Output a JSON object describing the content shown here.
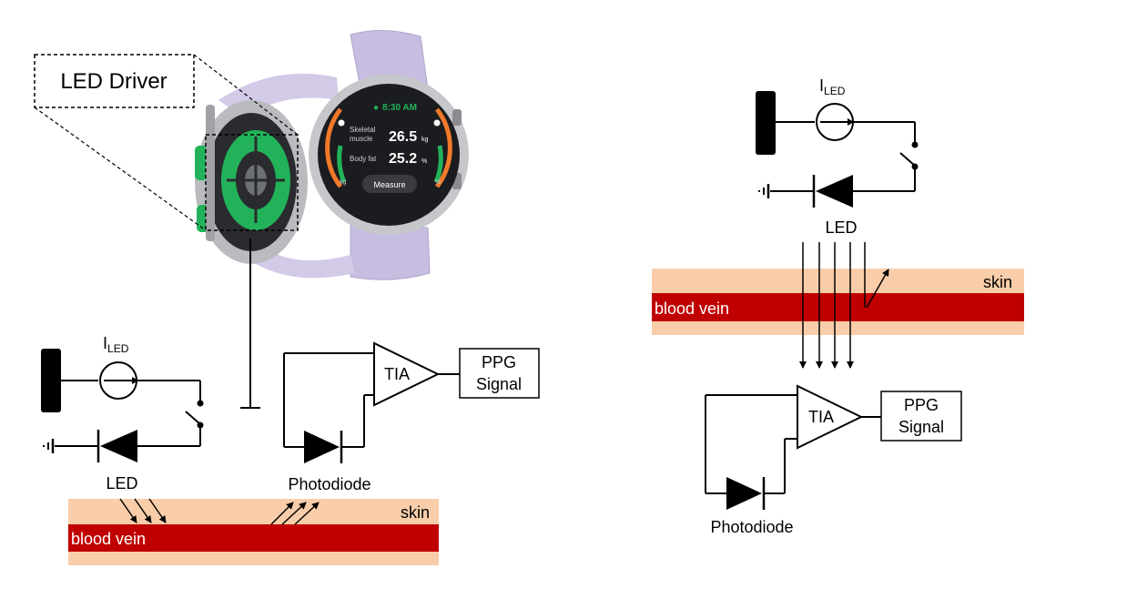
{
  "left_panel": {
    "callout_label": "LED Driver",
    "watch": {
      "time": "8:30 AM",
      "metric1_label_line1": "Skeletal",
      "metric1_label_line2": "muscle",
      "metric1_value": "26.5",
      "metric1_unit": "kg",
      "metric2_label": "Body fat",
      "metric2_value": "25.2",
      "metric2_unit": "%",
      "button_label": "Measure",
      "scale_left": "kg",
      "scale_right": "%"
    },
    "source_label_main": "I",
    "source_label_sub": "LED",
    "led_label": "LED",
    "tia_label": "TIA",
    "ppg_line1": "PPG",
    "ppg_line2": "Signal",
    "photodiode_label": "Photodiode",
    "skin_label": "skin",
    "vein_label": "blood vein"
  },
  "right_panel": {
    "source_label_main": "I",
    "source_label_sub": "LED",
    "led_label": "LED",
    "tia_label": "TIA",
    "ppg_line1": "PPG",
    "ppg_line2": "Signal",
    "photodiode_label": "Photodiode",
    "skin_label": "skin",
    "vein_label": "blood vein"
  },
  "colors": {
    "skin": "#f9cda9",
    "vein": "#c00000",
    "led_green": "#22b35a",
    "watch_band": "#c7bde0",
    "watch_screen": "#1b1c1f",
    "watch_accent_orange": "#f07a2a",
    "wire": "#000000"
  }
}
